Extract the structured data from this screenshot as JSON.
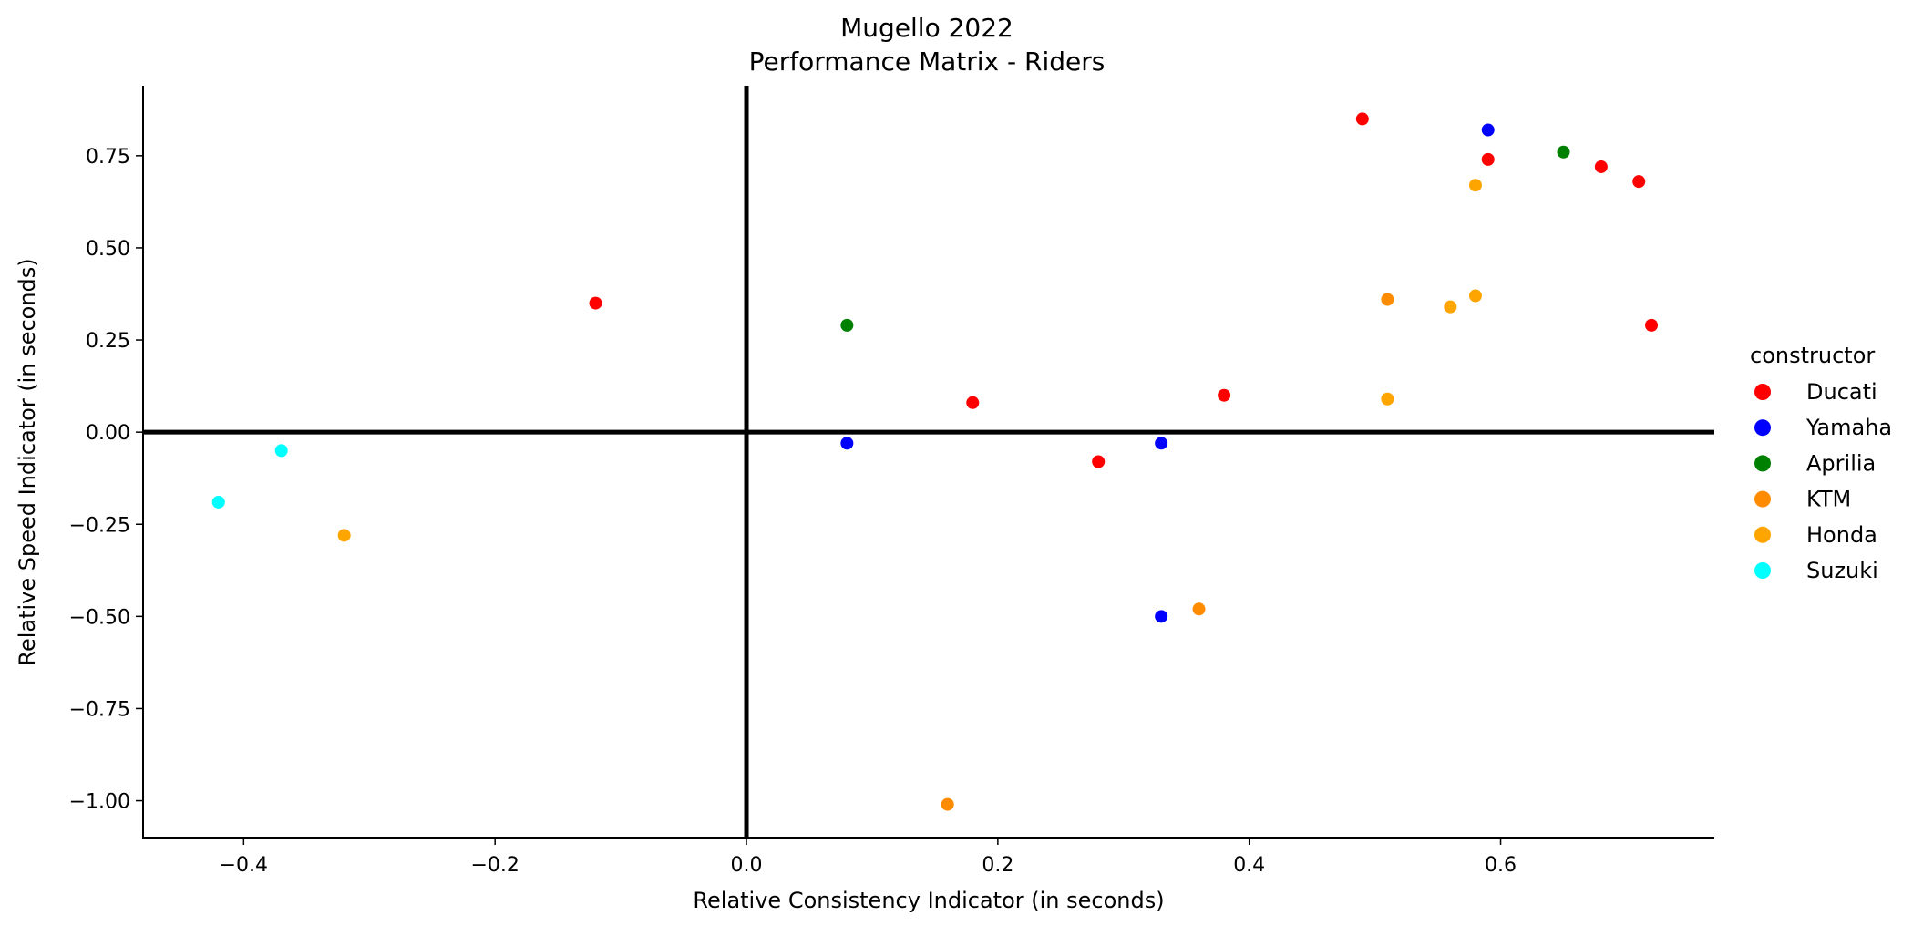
{
  "chart_data": {
    "type": "scatter",
    "title": "Mugello 2022",
    "subtitle": "Performance Matrix - Riders",
    "xlabel": "Relative Consistency Indicator (in seconds)",
    "ylabel": "Relative Speed Indicator (in seconds)",
    "xlim": [
      -0.48,
      0.77
    ],
    "ylim": [
      -1.1,
      0.94
    ],
    "x_ticks": [
      -0.4,
      -0.2,
      0.0,
      0.2,
      0.4,
      0.6
    ],
    "x_tick_labels": [
      "−0.4",
      "−0.2",
      "0.0",
      "0.2",
      "0.4",
      "0.6"
    ],
    "y_ticks": [
      0.75,
      0.5,
      0.25,
      0.0,
      -0.25,
      -0.5,
      -0.75,
      -1.0
    ],
    "y_tick_labels": [
      "0.75",
      "0.50",
      "0.25",
      "0.00",
      "−0.25",
      "−0.50",
      "−0.75",
      "−1.00"
    ],
    "grid": false,
    "reference_lines": {
      "x": 0,
      "y": 0
    },
    "legend_title": "constructor",
    "legend_placement": "right",
    "series": [
      {
        "name": "Ducati",
        "color": "#ff0000",
        "points": [
          [
            0.49,
            0.85
          ],
          [
            0.59,
            0.74
          ],
          [
            0.68,
            0.72
          ],
          [
            0.71,
            0.68
          ],
          [
            0.72,
            0.29
          ],
          [
            -0.12,
            0.35
          ],
          [
            0.18,
            0.08
          ],
          [
            0.38,
            0.1
          ],
          [
            0.28,
            -0.08
          ]
        ]
      },
      {
        "name": "Yamaha",
        "color": "#0000ff",
        "points": [
          [
            0.59,
            0.82
          ],
          [
            0.08,
            -0.03
          ],
          [
            0.33,
            -0.03
          ],
          [
            0.33,
            -0.5
          ]
        ]
      },
      {
        "name": "Aprilia",
        "color": "#008000",
        "points": [
          [
            0.65,
            0.76
          ],
          [
            0.08,
            0.29
          ]
        ]
      },
      {
        "name": "KTM",
        "color": "#ff8c00",
        "points": [
          [
            0.51,
            0.36
          ],
          [
            0.36,
            -0.48
          ],
          [
            0.16,
            -1.01
          ]
        ]
      },
      {
        "name": "Honda",
        "color": "#ffa500",
        "points": [
          [
            0.58,
            0.67
          ],
          [
            0.56,
            0.34
          ],
          [
            0.58,
            0.37
          ],
          [
            0.51,
            0.09
          ],
          [
            -0.32,
            -0.28
          ]
        ]
      },
      {
        "name": "Suzuki",
        "color": "#00ffff",
        "points": [
          [
            -0.37,
            -0.05
          ],
          [
            -0.42,
            -0.19
          ]
        ]
      }
    ]
  }
}
